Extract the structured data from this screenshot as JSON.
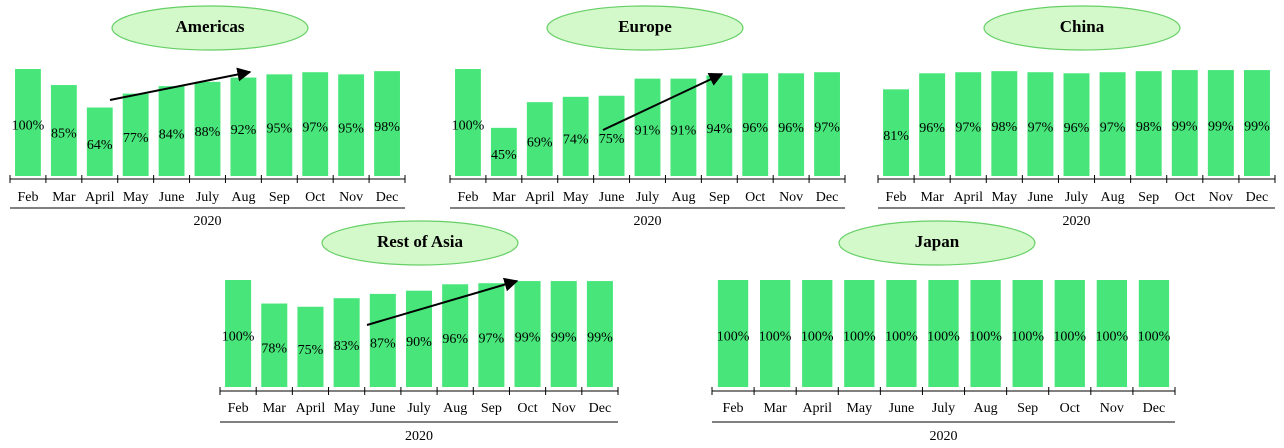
{
  "chart_data": [
    {
      "type": "bar",
      "title": "Americas",
      "xlabel": "2020",
      "color": "#48e67a",
      "ylim": [
        0,
        100
      ],
      "categories": [
        "Feb",
        "Mar",
        "April",
        "May",
        "June",
        "July",
        "Aug",
        "Sep",
        "Oct",
        "Nov",
        "Dec"
      ],
      "values": [
        100,
        85,
        64,
        77,
        84,
        88,
        92,
        95,
        97,
        95,
        98
      ],
      "value_labels": [
        "100%",
        "85%",
        "64%",
        "77%",
        "84%",
        "88%",
        "92%",
        "95%",
        "97%",
        "95%",
        "98%"
      ]
    },
    {
      "type": "bar",
      "title": "Europe",
      "xlabel": "2020",
      "color": "#48e67a",
      "ylim": [
        0,
        100
      ],
      "categories": [
        "Feb",
        "Mar",
        "April",
        "May",
        "June",
        "July",
        "Aug",
        "Sep",
        "Oct",
        "Nov",
        "Dec"
      ],
      "values": [
        100,
        45,
        69,
        74,
        75,
        91,
        91,
        94,
        96,
        96,
        97
      ],
      "value_labels": [
        "100%",
        "45%",
        "69%",
        "74%",
        "75%",
        "91%",
        "91%",
        "94%",
        "96%",
        "96%",
        "97%"
      ]
    },
    {
      "type": "bar",
      "title": "China",
      "xlabel": "2020",
      "color": "#48e67a",
      "ylim": [
        0,
        100
      ],
      "categories": [
        "Feb",
        "Mar",
        "April",
        "May",
        "June",
        "July",
        "Aug",
        "Sep",
        "Oct",
        "Nov",
        "Dec"
      ],
      "values": [
        81,
        96,
        97,
        98,
        97,
        96,
        97,
        98,
        99,
        99,
        99
      ],
      "value_labels": [
        "81%",
        "96%",
        "97%",
        "98%",
        "97%",
        "96%",
        "97%",
        "98%",
        "99%",
        "99%",
        "99%"
      ]
    },
    {
      "type": "bar",
      "title": "Rest of Asia",
      "xlabel": "2020",
      "color": "#48e67a",
      "ylim": [
        0,
        100
      ],
      "categories": [
        "Feb",
        "Mar",
        "April",
        "May",
        "June",
        "July",
        "Aug",
        "Sep",
        "Oct",
        "Nov",
        "Dec"
      ],
      "values": [
        100,
        78,
        75,
        83,
        87,
        90,
        96,
        97,
        99,
        99,
        99
      ],
      "value_labels": [
        "100%",
        "78%",
        "75%",
        "83%",
        "87%",
        "90%",
        "96%",
        "97%",
        "99%",
        "99%",
        "99%"
      ]
    },
    {
      "type": "bar",
      "title": "Japan",
      "xlabel": "2020",
      "color": "#48e67a",
      "ylim": [
        0,
        100
      ],
      "categories": [
        "Feb",
        "Mar",
        "April",
        "May",
        "June",
        "July",
        "Aug",
        "Sep",
        "Oct",
        "Nov",
        "Dec"
      ],
      "values": [
        100,
        100,
        100,
        100,
        100,
        100,
        100,
        100,
        100,
        100,
        100
      ],
      "value_labels": [
        "100%",
        "100%",
        "100%",
        "100%",
        "100%",
        "100%",
        "100%",
        "100%",
        "100%",
        "100%",
        "100%"
      ]
    }
  ]
}
